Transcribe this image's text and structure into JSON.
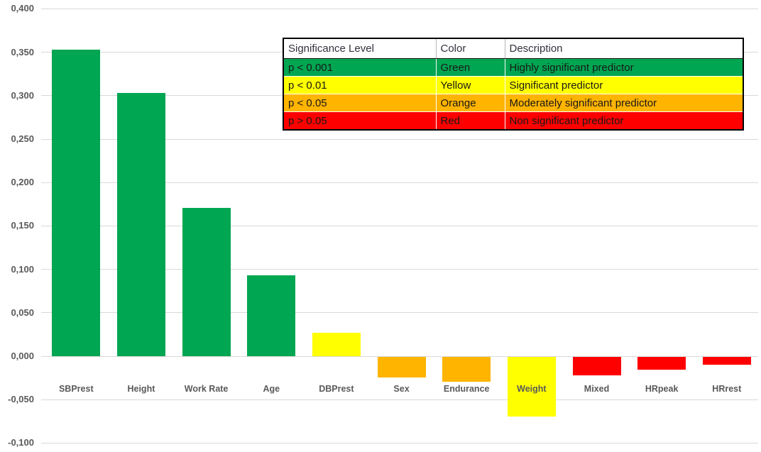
{
  "chart_data": {
    "type": "bar",
    "title": "",
    "xlabel": "",
    "ylabel": "",
    "categories": [
      "SBPrest",
      "Height",
      "Work Rate",
      "Age",
      "DBPrest",
      "Sex",
      "Endurance",
      "Weight",
      "Mixed",
      "HRpeak",
      "HRrest"
    ],
    "values": [
      0.353,
      0.303,
      0.171,
      0.093,
      0.027,
      -0.024,
      -0.029,
      -0.069,
      -0.021,
      -0.015,
      -0.009
    ],
    "bar_color_names": [
      "green",
      "green",
      "green",
      "green",
      "yellow",
      "orange",
      "orange",
      "yellow",
      "red",
      "red",
      "red"
    ],
    "y_axis": {
      "tick_labels": [
        "0,400",
        "0,350",
        "0,300",
        "0,250",
        "0,200",
        "0,150",
        "0,100",
        "0,050",
        "0,000",
        "-0,050",
        "-0,100"
      ],
      "tick_values": [
        0.4,
        0.35,
        0.3,
        0.25,
        0.2,
        0.15,
        0.1,
        0.05,
        0.0,
        -0.05,
        -0.1
      ],
      "ylim": [
        -0.1,
        0.4
      ],
      "decimal_separator": "comma"
    },
    "grid": true,
    "legend_position": "top-right"
  },
  "palette": {
    "green": "#00A651",
    "yellow": "#FFFF00",
    "orange": "#FFB400",
    "red": "#FF0000",
    "axis_text": "#595959",
    "gridline": "#D9D9D9",
    "table_border": "#000000"
  },
  "legend_table": {
    "headers": [
      "Significance Level",
      "Color",
      "Description"
    ],
    "rows": [
      {
        "level": "p < 0.001",
        "color_name": "Green",
        "description": "Highly significant predictor",
        "bg": "green"
      },
      {
        "level": "p < 0.01",
        "color_name": "Yellow",
        "description": "Significant predictor",
        "bg": "yellow"
      },
      {
        "level": "p < 0.05",
        "color_name": "Orange",
        "description": "Moderately significant predictor",
        "bg": "orange"
      },
      {
        "level": "p > 0.05",
        "color_name": "Red",
        "description": "Non significant predictor",
        "bg": "red"
      }
    ]
  }
}
